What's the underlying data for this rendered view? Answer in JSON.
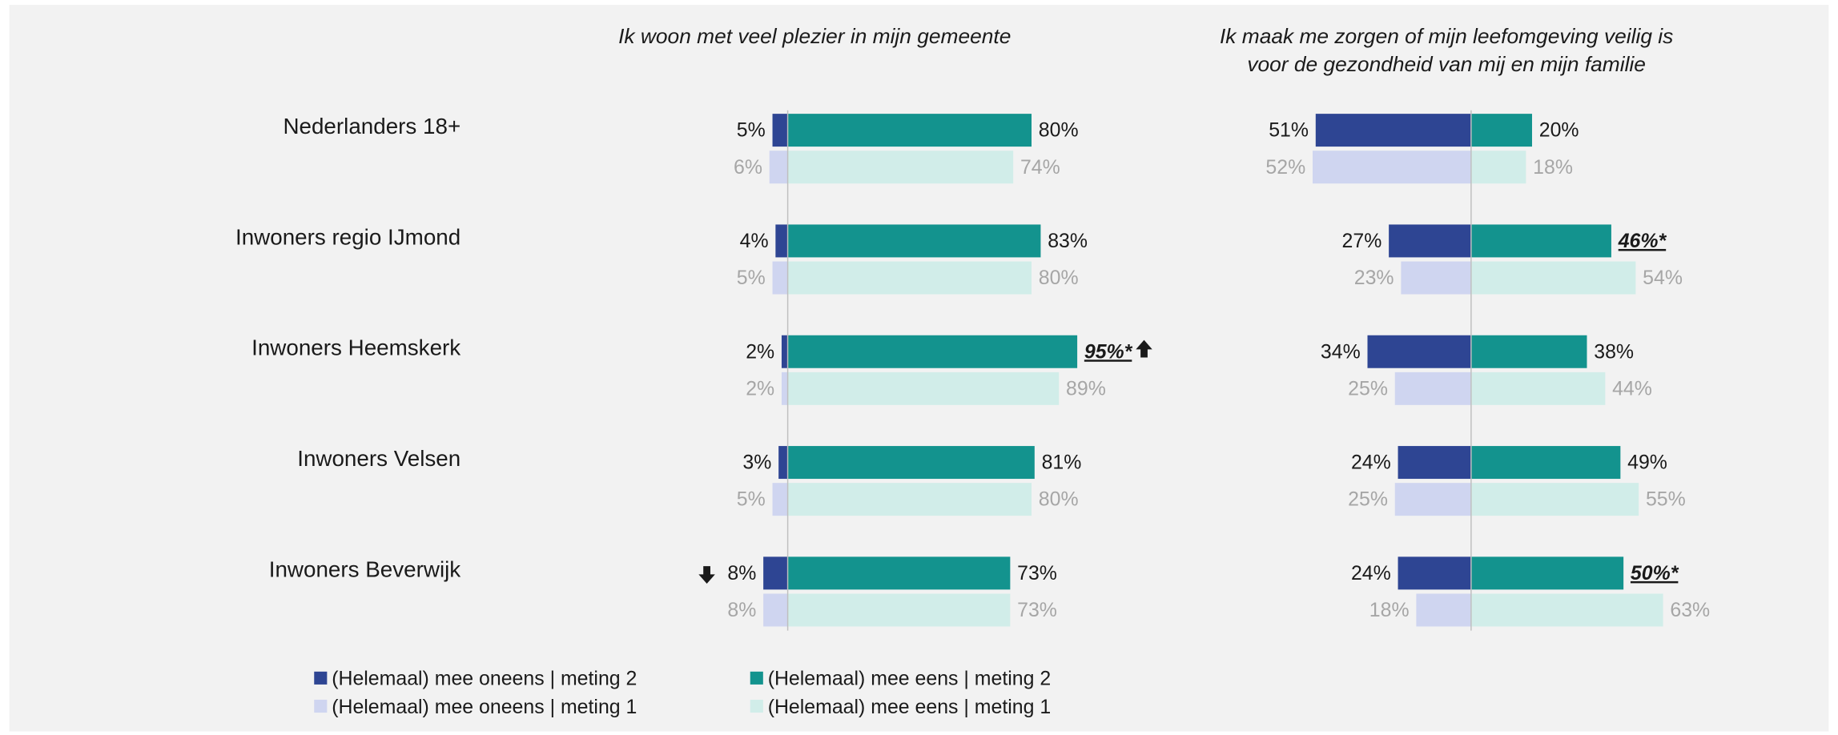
{
  "chart_data": {
    "type": "diverging_bar",
    "categories": [
      "Nederlanders 18+",
      "Inwoners regio IJmond",
      "Inwoners Heemskerk",
      "Inwoners Velsen",
      "Inwoners Beverwijk"
    ],
    "legend": [
      {
        "name": "(Helemaal) mee oneens | meting 2",
        "color": "#2e4593",
        "side": "left"
      },
      {
        "name": "(Helemaal) mee eens | meting 2",
        "color": "#13938e",
        "side": "right"
      },
      {
        "name": "(Helemaal) mee oneens | meting 1",
        "color": "#cfd5f0",
        "side": "left"
      },
      {
        "name": "(Helemaal) mee eens | meting 1",
        "color": "#d1ede9",
        "side": "right"
      }
    ],
    "panels": [
      {
        "title": [
          "Ik woon met veel plezier in mijn gemeente"
        ],
        "series": [
          {
            "values": [
              5,
              4,
              2,
              3,
              8
            ],
            "value_labels": [
              "5%",
              "4%",
              "2%",
              "3%",
              "8%"
            ]
          },
          {
            "values": [
              80,
              83,
              95,
              81,
              73
            ],
            "value_labels": [
              "80%",
              "83%",
              "95%*",
              "81%",
              "73%"
            ]
          },
          {
            "values": [
              6,
              5,
              2,
              5,
              8
            ],
            "value_labels": [
              "6%",
              "5%",
              "2%",
              "5%",
              "8%"
            ]
          },
          {
            "values": [
              74,
              80,
              89,
              80,
              73
            ],
            "value_labels": [
              "74%",
              "80%",
              "89%",
              "80%",
              "73%"
            ]
          }
        ]
      },
      {
        "title": [
          "Ik maak me zorgen of mijn leefomgeving veilig is",
          "voor de gezondheid van mij en mijn familie"
        ],
        "series": [
          {
            "values": [
              51,
              27,
              34,
              24,
              24
            ],
            "value_labels": [
              "51%",
              "27%",
              "34%",
              "24%",
              "24%"
            ]
          },
          {
            "values": [
              20,
              46,
              38,
              49,
              50
            ],
            "value_labels": [
              "20%",
              "46%*",
              "38%",
              "49%",
              "50%*"
            ]
          },
          {
            "values": [
              52,
              23,
              25,
              25,
              18
            ],
            "value_labels": [
              "52%",
              "23%",
              "25%",
              "25%",
              "18%"
            ]
          },
          {
            "values": [
              18,
              54,
              44,
              55,
              63
            ],
            "value_labels": [
              "18%",
              "54%",
              "44%",
              "55%",
              "63%"
            ]
          }
        ]
      }
    ]
  }
}
